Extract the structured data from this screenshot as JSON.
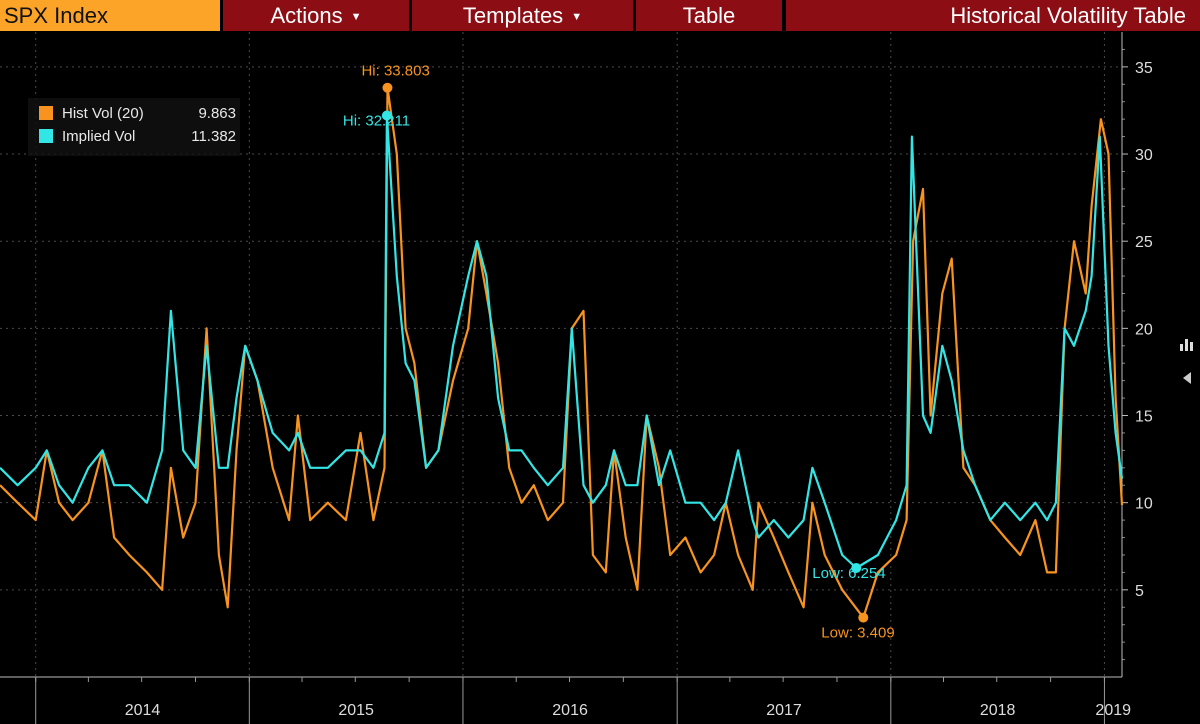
{
  "toolbar": {
    "security": "SPX Index",
    "actions": "Actions",
    "templates": "Templates",
    "table": "Table",
    "title": "Historical Volatility Table"
  },
  "legend": [
    {
      "label": "Hist Vol (20)",
      "value": "9.863",
      "color": "#f7931e"
    },
    {
      "label": "Implied Vol",
      "value": "11.382",
      "color": "#33e6e6"
    }
  ],
  "icons": [
    "bar-chart-icon",
    "collapse-left-icon"
  ],
  "colors": {
    "background": "#000000",
    "hist": "#f7931e",
    "implied": "#33e6e6",
    "grid": "#4a4a4a",
    "toolbar_red": "#8c0e14",
    "toolbar_orange": "#fba428"
  },
  "chart_data": {
    "type": "line",
    "x_range": [
      "2013-11-01",
      "2019-01-31"
    ],
    "ylim": [
      0,
      37
    ],
    "y_ticks": [
      5,
      10,
      15,
      20,
      25,
      30,
      35
    ],
    "x_ticks": [
      "2014",
      "2015",
      "2016",
      "2017",
      "2018",
      "2019"
    ],
    "y_axis_side": "right",
    "grid": true,
    "legend_position": "top-left",
    "annotations": [
      {
        "text": "Hi: 33.803",
        "series": "Hist Vol (20)",
        "x": "2015-08-25",
        "y": 33.803
      },
      {
        "text": "Hi: 32.211",
        "series": "Implied Vol",
        "x": "2015-08-24",
        "y": 32.211
      },
      {
        "text": "Low: 6.254",
        "series": "Implied Vol",
        "x": "2017-11-03",
        "y": 6.254
      },
      {
        "text": "Low: 3.409",
        "series": "Hist Vol (20)",
        "x": "2017-11-15",
        "y": 3.409
      }
    ],
    "series": [
      {
        "name": "Hist Vol (20)",
        "color": "#f7931e",
        "points": [
          [
            "2013-11-01",
            11
          ],
          [
            "2013-12-01",
            10
          ],
          [
            "2014-01-01",
            9
          ],
          [
            "2014-01-20",
            13
          ],
          [
            "2014-02-10",
            10
          ],
          [
            "2014-03-05",
            9
          ],
          [
            "2014-04-01",
            10
          ],
          [
            "2014-04-25",
            13
          ],
          [
            "2014-05-15",
            8
          ],
          [
            "2014-06-10",
            7
          ],
          [
            "2014-07-10",
            6
          ],
          [
            "2014-08-05",
            5
          ],
          [
            "2014-08-20",
            12
          ],
          [
            "2014-09-10",
            8
          ],
          [
            "2014-10-01",
            10
          ],
          [
            "2014-10-20",
            20
          ],
          [
            "2014-11-10",
            7
          ],
          [
            "2014-11-25",
            4
          ],
          [
            "2014-12-10",
            13
          ],
          [
            "2014-12-25",
            19
          ],
          [
            "2015-01-15",
            17
          ],
          [
            "2015-02-10",
            12
          ],
          [
            "2015-03-10",
            9
          ],
          [
            "2015-03-25",
            15
          ],
          [
            "2015-04-15",
            9
          ],
          [
            "2015-05-15",
            10
          ],
          [
            "2015-06-15",
            9
          ],
          [
            "2015-07-10",
            14
          ],
          [
            "2015-08-01",
            9
          ],
          [
            "2015-08-20",
            12
          ],
          [
            "2015-08-25",
            33.803
          ],
          [
            "2015-09-10",
            30
          ],
          [
            "2015-09-25",
            20
          ],
          [
            "2015-10-10",
            18
          ],
          [
            "2015-10-30",
            12
          ],
          [
            "2015-11-20",
            13
          ],
          [
            "2015-12-15",
            17
          ],
          [
            "2016-01-10",
            20
          ],
          [
            "2016-01-25",
            25
          ],
          [
            "2016-02-10",
            22
          ],
          [
            "2016-03-01",
            18
          ],
          [
            "2016-03-20",
            12
          ],
          [
            "2016-04-10",
            10
          ],
          [
            "2016-05-01",
            11
          ],
          [
            "2016-05-25",
            9
          ],
          [
            "2016-06-20",
            10
          ],
          [
            "2016-07-05",
            20
          ],
          [
            "2016-07-25",
            21
          ],
          [
            "2016-08-10",
            7
          ],
          [
            "2016-09-01",
            6
          ],
          [
            "2016-09-15",
            13
          ],
          [
            "2016-10-05",
            8
          ],
          [
            "2016-10-25",
            5
          ],
          [
            "2016-11-10",
            15
          ],
          [
            "2016-12-01",
            12
          ],
          [
            "2016-12-20",
            7
          ],
          [
            "2017-01-15",
            8
          ],
          [
            "2017-02-10",
            6
          ],
          [
            "2017-03-05",
            7
          ],
          [
            "2017-03-25",
            10
          ],
          [
            "2017-04-15",
            7
          ],
          [
            "2017-05-10",
            5
          ],
          [
            "2017-05-20",
            10
          ],
          [
            "2017-06-15",
            8
          ],
          [
            "2017-07-10",
            6
          ],
          [
            "2017-08-05",
            4
          ],
          [
            "2017-08-20",
            10
          ],
          [
            "2017-09-10",
            7
          ],
          [
            "2017-10-10",
            5
          ],
          [
            "2017-11-15",
            3.409
          ],
          [
            "2017-12-10",
            6
          ],
          [
            "2018-01-10",
            7
          ],
          [
            "2018-01-28",
            9
          ],
          [
            "2018-02-08",
            25
          ],
          [
            "2018-02-25",
            28
          ],
          [
            "2018-03-10",
            15
          ],
          [
            "2018-03-30",
            22
          ],
          [
            "2018-04-15",
            24
          ],
          [
            "2018-05-05",
            12
          ],
          [
            "2018-05-25",
            11
          ],
          [
            "2018-06-20",
            9
          ],
          [
            "2018-07-15",
            8
          ],
          [
            "2018-08-10",
            7
          ],
          [
            "2018-09-05",
            9
          ],
          [
            "2018-09-25",
            6
          ],
          [
            "2018-10-10",
            6
          ],
          [
            "2018-10-25",
            20
          ],
          [
            "2018-11-10",
            25
          ],
          [
            "2018-11-30",
            22
          ],
          [
            "2018-12-10",
            27
          ],
          [
            "2018-12-26",
            32
          ],
          [
            "2019-01-08",
            30
          ],
          [
            "2019-01-20",
            16
          ],
          [
            "2019-01-31",
            9.863
          ]
        ]
      },
      {
        "name": "Implied Vol",
        "color": "#33e6e6",
        "points": [
          [
            "2013-11-01",
            12
          ],
          [
            "2013-12-01",
            11
          ],
          [
            "2014-01-01",
            12
          ],
          [
            "2014-01-20",
            13
          ],
          [
            "2014-02-10",
            11
          ],
          [
            "2014-03-05",
            10
          ],
          [
            "2014-04-01",
            12
          ],
          [
            "2014-04-25",
            13
          ],
          [
            "2014-05-15",
            11
          ],
          [
            "2014-06-10",
            11
          ],
          [
            "2014-07-10",
            10
          ],
          [
            "2014-08-05",
            13
          ],
          [
            "2014-08-20",
            21
          ],
          [
            "2014-09-10",
            13
          ],
          [
            "2014-10-01",
            12
          ],
          [
            "2014-10-20",
            19
          ],
          [
            "2014-11-10",
            12
          ],
          [
            "2014-11-25",
            12
          ],
          [
            "2014-12-10",
            16
          ],
          [
            "2014-12-25",
            19
          ],
          [
            "2015-01-15",
            17
          ],
          [
            "2015-02-10",
            14
          ],
          [
            "2015-03-10",
            13
          ],
          [
            "2015-03-25",
            14
          ],
          [
            "2015-04-15",
            12
          ],
          [
            "2015-05-15",
            12
          ],
          [
            "2015-06-15",
            13
          ],
          [
            "2015-07-10",
            13
          ],
          [
            "2015-08-01",
            12
          ],
          [
            "2015-08-20",
            14
          ],
          [
            "2015-08-24",
            32.211
          ],
          [
            "2015-09-10",
            23
          ],
          [
            "2015-09-25",
            18
          ],
          [
            "2015-10-10",
            17
          ],
          [
            "2015-10-30",
            12
          ],
          [
            "2015-11-20",
            13
          ],
          [
            "2015-12-15",
            19
          ],
          [
            "2016-01-10",
            23
          ],
          [
            "2016-01-25",
            25
          ],
          [
            "2016-02-10",
            23
          ],
          [
            "2016-03-01",
            16
          ],
          [
            "2016-03-20",
            13
          ],
          [
            "2016-04-10",
            13
          ],
          [
            "2016-05-01",
            12
          ],
          [
            "2016-05-25",
            11
          ],
          [
            "2016-06-20",
            12
          ],
          [
            "2016-07-05",
            20
          ],
          [
            "2016-07-25",
            11
          ],
          [
            "2016-08-10",
            10
          ],
          [
            "2016-09-01",
            11
          ],
          [
            "2016-09-15",
            13
          ],
          [
            "2016-10-05",
            11
          ],
          [
            "2016-10-25",
            11
          ],
          [
            "2016-11-10",
            15
          ],
          [
            "2016-12-01",
            11
          ],
          [
            "2016-12-20",
            13
          ],
          [
            "2017-01-15",
            10
          ],
          [
            "2017-02-10",
            10
          ],
          [
            "2017-03-05",
            9
          ],
          [
            "2017-03-25",
            10
          ],
          [
            "2017-04-15",
            13
          ],
          [
            "2017-05-10",
            9
          ],
          [
            "2017-05-20",
            8
          ],
          [
            "2017-06-15",
            9
          ],
          [
            "2017-07-10",
            8
          ],
          [
            "2017-08-05",
            9
          ],
          [
            "2017-08-20",
            12
          ],
          [
            "2017-09-10",
            10
          ],
          [
            "2017-10-10",
            7
          ],
          [
            "2017-11-03",
            6.254
          ],
          [
            "2017-12-10",
            7
          ],
          [
            "2018-01-10",
            9
          ],
          [
            "2018-01-28",
            11
          ],
          [
            "2018-02-06",
            31
          ],
          [
            "2018-02-25",
            15
          ],
          [
            "2018-03-10",
            14
          ],
          [
            "2018-03-30",
            19
          ],
          [
            "2018-04-15",
            17
          ],
          [
            "2018-05-05",
            13
          ],
          [
            "2018-05-25",
            11
          ],
          [
            "2018-06-20",
            9
          ],
          [
            "2018-07-15",
            10
          ],
          [
            "2018-08-10",
            9
          ],
          [
            "2018-09-05",
            10
          ],
          [
            "2018-09-25",
            9
          ],
          [
            "2018-10-10",
            10
          ],
          [
            "2018-10-25",
            20
          ],
          [
            "2018-11-10",
            19
          ],
          [
            "2018-11-30",
            21
          ],
          [
            "2018-12-10",
            23
          ],
          [
            "2018-12-24",
            31
          ],
          [
            "2019-01-08",
            19
          ],
          [
            "2019-01-20",
            14
          ],
          [
            "2019-01-31",
            11.382
          ]
        ]
      }
    ]
  }
}
